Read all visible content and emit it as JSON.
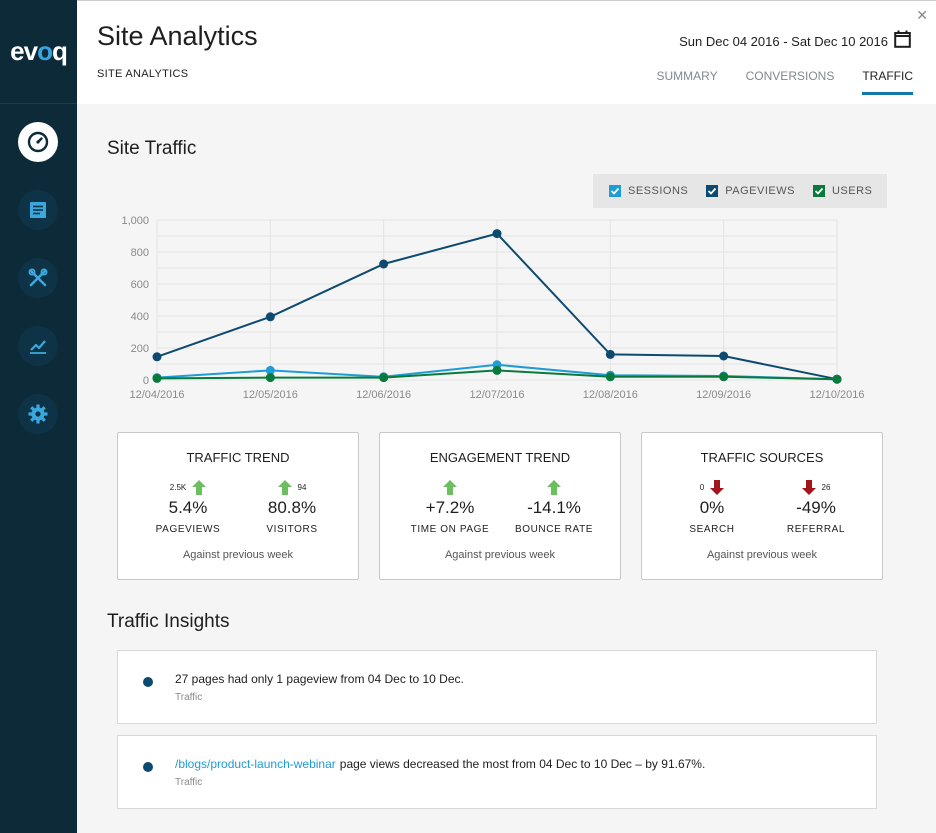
{
  "app": {
    "logo": "evoq"
  },
  "sidebar": {
    "items": [
      "dashboard-icon",
      "content-icon",
      "tools-icon",
      "analytics-icon",
      "settings-icon"
    ]
  },
  "header": {
    "title": "Site Analytics",
    "breadcrumb": "SITE ANALYTICS",
    "date_range": "Sun Dec 04 2016 - Sat Dec 10 2016",
    "tabs": [
      {
        "label": "SUMMARY",
        "active": false
      },
      {
        "label": "CONVERSIONS",
        "active": false
      },
      {
        "label": "TRAFFIC",
        "active": true
      }
    ]
  },
  "traffic": {
    "title": "Site Traffic",
    "legend": [
      {
        "label": "SESSIONS",
        "color": "#1f9bd6"
      },
      {
        "label": "PAGEVIEWS",
        "color": "#0d4a70"
      },
      {
        "label": "USERS",
        "color": "#0a7a3c"
      }
    ]
  },
  "chart_data": {
    "type": "line",
    "x": [
      "12/04/2016",
      "12/05/2016",
      "12/06/2016",
      "12/07/2016",
      "12/08/2016",
      "12/09/2016",
      "12/10/2016"
    ],
    "series": [
      {
        "name": "SESSIONS",
        "color": "#1f9bd6",
        "values": [
          15,
          60,
          20,
          95,
          30,
          25,
          5
        ]
      },
      {
        "name": "PAGEVIEWS",
        "color": "#0d4a70",
        "values": [
          145,
          395,
          725,
          915,
          160,
          150,
          5
        ]
      },
      {
        "name": "USERS",
        "color": "#0a7a3c",
        "values": [
          10,
          15,
          15,
          60,
          20,
          20,
          5
        ]
      }
    ],
    "yticks": [
      "0",
      "200",
      "400",
      "600",
      "800",
      "1,000"
    ],
    "ylim": [
      0,
      1000
    ],
    "grid": true,
    "legend_position": "top-right"
  },
  "cards": [
    {
      "title": "TRAFFIC TREND",
      "footer": "Against previous week",
      "metrics": [
        {
          "count": "2.5K",
          "direction": "up",
          "value": "5.4%",
          "label": "PAGEVIEWS"
        },
        {
          "count": "94",
          "direction": "up",
          "value": "80.8%",
          "label": "VISITORS"
        }
      ]
    },
    {
      "title": "ENGAGEMENT TREND",
      "footer": "Against previous week",
      "metrics": [
        {
          "count": "",
          "direction": "up",
          "value": "+7.2%",
          "label": "TIME ON PAGE"
        },
        {
          "count": "",
          "direction": "up",
          "value": "-14.1%",
          "label": "BOUNCE RATE"
        }
      ]
    },
    {
      "title": "TRAFFIC SOURCES",
      "footer": "Against previous week",
      "metrics": [
        {
          "count": "0",
          "direction": "down",
          "value": "0%",
          "label": "SEARCH"
        },
        {
          "count": "26",
          "direction": "down",
          "value": "-49%",
          "label": "REFERRAL"
        }
      ]
    }
  ],
  "insights": {
    "title": "Traffic Insights",
    "items": [
      {
        "link": "",
        "text": "27 pages had only 1 pageview from 04 Dec to 10 Dec.",
        "category": "Traffic"
      },
      {
        "link": "/blogs/product-launch-webinar",
        "text": "page views decreased the most from 04 Dec to 10 Dec – by 91.67%.",
        "category": "Traffic"
      }
    ]
  }
}
